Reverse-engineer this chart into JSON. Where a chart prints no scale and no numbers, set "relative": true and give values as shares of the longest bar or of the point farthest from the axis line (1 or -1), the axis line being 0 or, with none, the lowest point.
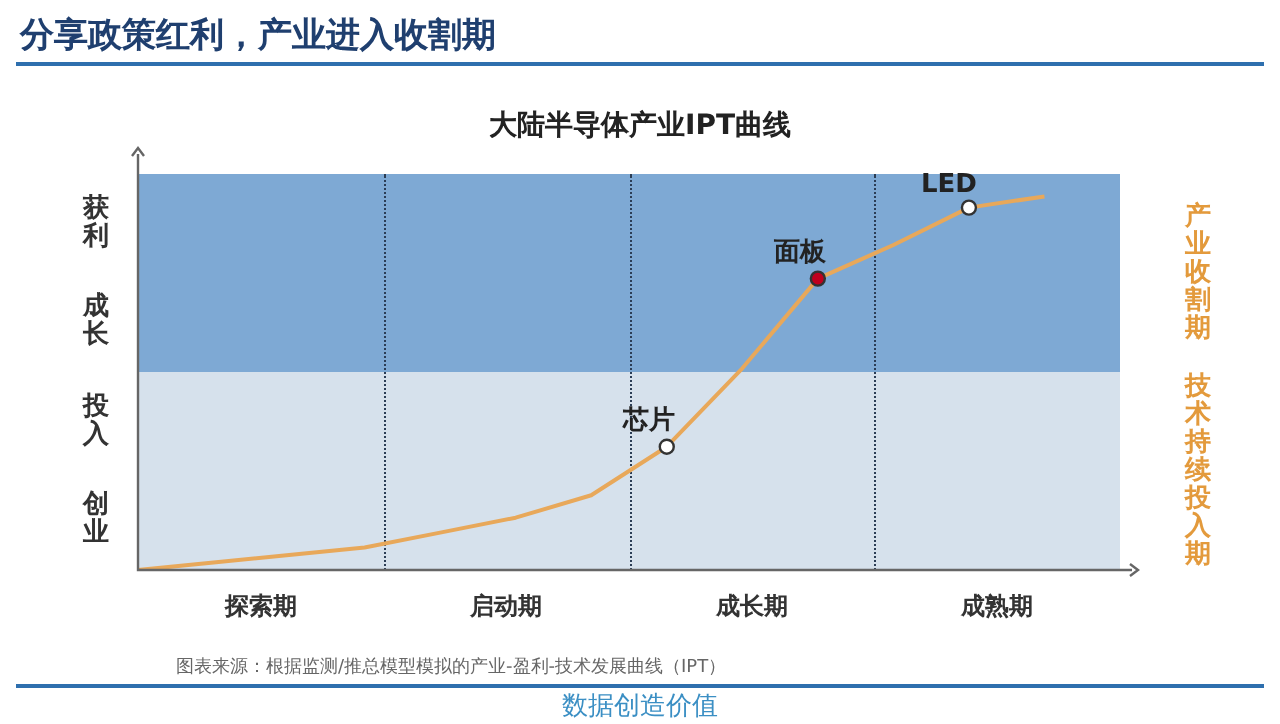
{
  "chart_data": {
    "type": "line",
    "title": "分享政策红利，产业进入收割期",
    "subtitle": "大陆半导体产业IPT曲线",
    "relative": true,
    "legend": false,
    "categories": [
      null,
      null,
      null,
      null,
      null,
      null,
      null,
      null,
      null,
      null,
      null,
      null,
      null,
      null
    ],
    "series": [
      {
        "color": "#e8a85a",
        "values": [
          0,
          0.02,
          0.04,
          0.06,
          0.1,
          0.14,
          0.2,
          0.33,
          0.54,
          0.78,
          0.87,
          0.97,
          1,
          null
        ],
        "colors": [
          null,
          null,
          null,
          null,
          null,
          null,
          null,
          "#ffffff",
          null,
          "#c0001d",
          null,
          "#ffffff",
          null,
          null
        ]
      }
    ],
    "annotations": [
      "获利",
      "成长",
      "投入",
      "创业",
      "产业收割期",
      "技术持续投入期",
      "探索期",
      "启动期",
      "成长期",
      "成熟期",
      "芯片",
      "面板",
      "LED",
      "图表来源：根据监测/推总模型模拟的产业-盈利-技术发展曲线（IPT）",
      "数据创造价值"
    ]
  }
}
